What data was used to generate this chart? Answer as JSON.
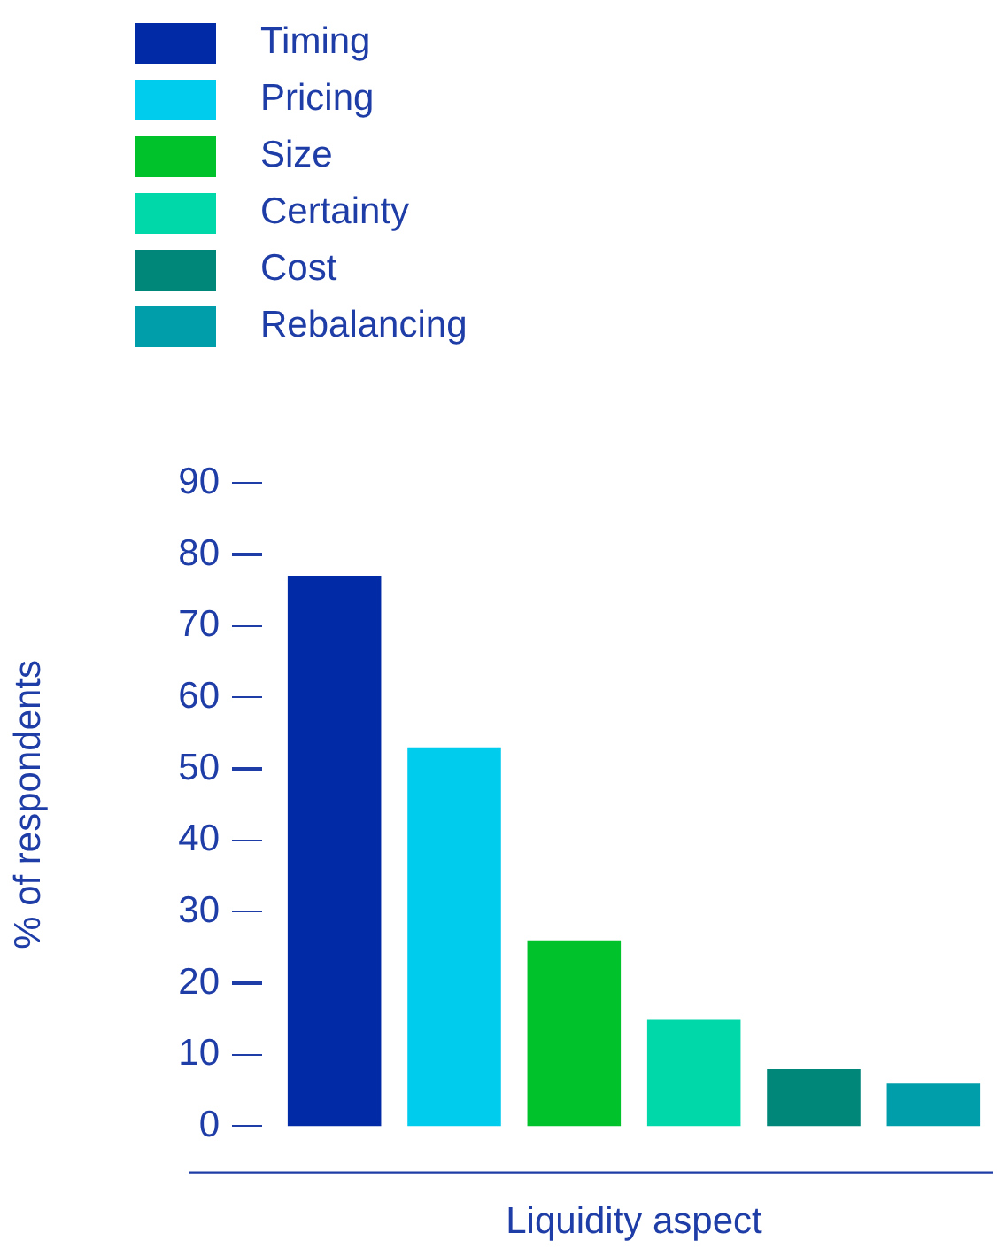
{
  "chart_data": {
    "type": "bar",
    "xlabel": "Liquidity aspect",
    "ylabel": "% of respondents",
    "categories": [
      null
    ],
    "series": [
      {
        "name": "Timing",
        "color": "#002aa6",
        "values": [
          77
        ]
      },
      {
        "name": "Pricing",
        "color": "#00ccee",
        "values": [
          53
        ]
      },
      {
        "name": "Size",
        "color": "#00c22a",
        "values": [
          26
        ]
      },
      {
        "name": "Certainty",
        "color": "#00d8aa",
        "values": [
          15
        ]
      },
      {
        "name": "Cost",
        "color": "#00877a",
        "values": [
          8
        ]
      },
      {
        "name": "Rebalancing",
        "color": "#009eaa",
        "values": [
          6
        ]
      }
    ],
    "ylim": [
      0,
      90
    ],
    "yticks": [
      0,
      10,
      20,
      30,
      40,
      50,
      60,
      70,
      80,
      90
    ],
    "grid": false,
    "legend": "top left",
    "tick_labels": "y"
  }
}
